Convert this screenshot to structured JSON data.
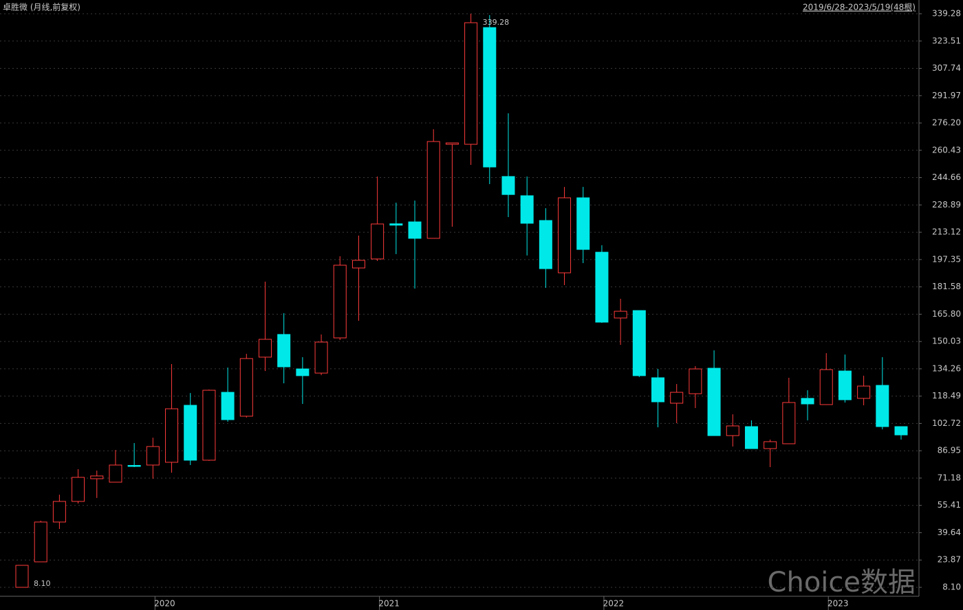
{
  "chart_data": {
    "type": "candlestick",
    "title": "卓胜微 (月线,前复权)",
    "subtitle": "2019/6/28-2023/5/19(48根)",
    "watermark": "Choice数据",
    "annotations": [
      "339.28",
      "8.10"
    ],
    "categories": [
      null,
      null,
      null,
      null,
      null,
      null,
      null,
      "2020",
      null,
      null,
      null,
      null,
      null,
      null,
      null,
      null,
      null,
      null,
      null,
      "2021",
      null,
      null,
      null,
      null,
      null,
      null,
      null,
      null,
      null,
      null,
      null,
      "2022",
      null,
      null,
      null,
      null,
      null,
      null,
      null,
      null,
      null,
      null,
      null,
      "2023",
      null,
      null,
      null,
      null
    ],
    "open": [
      8.1,
      22.8,
      45.8,
      57.7,
      70.8,
      68.8,
      78.5,
      78.7,
      80.3,
      113.2,
      81.5,
      120.7,
      106.9,
      141.0,
      154.1,
      134.2,
      131.8,
      152.1,
      192.5,
      197.7,
      218.0,
      219.1,
      209.6,
      263.9,
      263.9,
      331.3,
      245.3,
      234.2,
      219.9,
      189.7,
      233.0,
      201.6,
      163.6,
      167.9,
      129.1,
      114.4,
      119.9,
      134.6,
      95.7,
      100.9,
      88.2,
      91.0,
      117.2,
      113.6,
      133.0,
      117.2,
      124.7,
      100.9
    ],
    "high": [
      20.8,
      46.6,
      61.6,
      76.3,
      75.5,
      87.4,
      91.4,
      94.5,
      137.0,
      120.3,
      122.3,
      135.0,
      142.9,
      184.6,
      166.4,
      141.0,
      154.1,
      199.3,
      211.2,
      245.3,
      230.2,
      231.4,
      272.6,
      264.7,
      339.28,
      338.5,
      281.8,
      245.3,
      227.0,
      239.3,
      239.3,
      205.6,
      174.7,
      167.9,
      134.2,
      125.5,
      135.8,
      144.9,
      108.0,
      104.5,
      93.4,
      129.1,
      121.9,
      143.3,
      142.5,
      130.3,
      141.0,
      100.9
    ],
    "low": [
      8.1,
      22.8,
      41.8,
      56.5,
      59.7,
      68.8,
      77.5,
      70.8,
      74.3,
      78.7,
      81.1,
      103.7,
      106.1,
      133.0,
      125.9,
      114.0,
      130.6,
      150.9,
      162.0,
      196.5,
      200.5,
      180.6,
      209.6,
      216.3,
      252.0,
      240.9,
      221.9,
      199.7,
      181.0,
      182.6,
      195.3,
      160.8,
      148.1,
      129.5,
      100.5,
      102.9,
      111.6,
      95.7,
      89.4,
      88.2,
      77.5,
      91.0,
      104.5,
      113.6,
      114.8,
      113.2,
      99.3,
      93.4
    ],
    "close": [
      20.8,
      45.8,
      57.7,
      71.6,
      72.4,
      78.7,
      78.1,
      89.4,
      111.2,
      81.5,
      121.9,
      104.9,
      140.2,
      151.3,
      135.4,
      130.3,
      149.7,
      194.1,
      196.9,
      217.9,
      217.2,
      209.6,
      265.5,
      264.7,
      334.1,
      250.8,
      234.9,
      218.3,
      192.1,
      233.0,
      203.2,
      161.2,
      167.5,
      130.3,
      115.2,
      120.7,
      134.2,
      95.7,
      101.3,
      88.2,
      92.2,
      114.8,
      114.0,
      133.8,
      116.4,
      124.3,
      100.9,
      96.1
    ],
    "up_color": "#ff3b3b",
    "down_color": "#00e8e8",
    "ylim": [
      2.94,
      347.21
    ],
    "yticks": [
      {
        "value": 8.1,
        "label": "8.10"
      },
      23.87,
      39.64,
      55.41,
      71.18,
      86.95,
      102.72,
      118.49,
      134.26,
      150.03,
      {
        "value": 165.8,
        "label": "165.80"
      },
      181.58,
      197.35,
      213.12,
      228.89,
      244.66,
      260.43,
      {
        "value": 276.2,
        "label": "276.20"
      },
      291.97,
      307.74,
      323.51,
      339.28
    ],
    "grid": true
  }
}
